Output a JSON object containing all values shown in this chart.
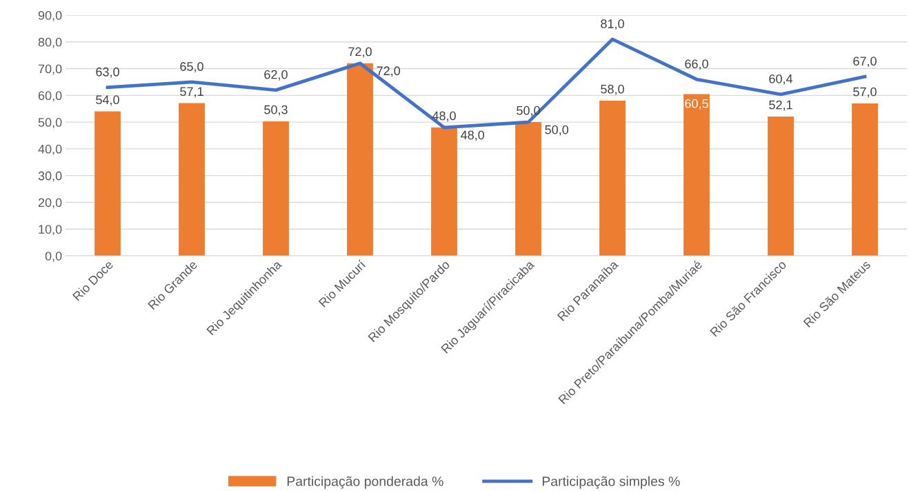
{
  "chart_data": {
    "type": "bar",
    "categories": [
      "Rio Doce",
      "Rio Grande",
      "Rio Jequitinhonha",
      "Rio Mucurí",
      "Rio Mosquito/Pardo",
      "Rio Jaguarí/Piracicaba",
      "Rio Paranaíba",
      "Rio Preto/Paraíbuna/Pomba/Muriaé",
      "Rio São Francisco",
      "Rio São Mateus"
    ],
    "series": [
      {
        "name": "Participação ponderada %",
        "type": "bar",
        "color": "#ed7d31",
        "values": [
          54.0,
          57.1,
          50.3,
          72.0,
          48.0,
          50.0,
          58.0,
          60.5,
          52.1,
          57.0
        ],
        "value_labels": [
          "54,0",
          "57,1",
          "50,3",
          "72,0",
          "48,0",
          "50,0",
          "58,0",
          "60,5",
          "52,1",
          "57,0"
        ]
      },
      {
        "name": "Participação simples %",
        "type": "line",
        "color": "#4472c4",
        "values": [
          63.0,
          65.0,
          62.0,
          72.0,
          48.0,
          50.0,
          81.0,
          66.0,
          60.4,
          67.0
        ],
        "value_labels": [
          "63,0",
          "65,0",
          "62,0",
          "72,0",
          "48,0",
          "50,0",
          "81,0",
          "66,0",
          "60,4",
          "67,0"
        ]
      }
    ],
    "ylim": [
      0,
      90
    ],
    "yticks": [
      {
        "value": 0,
        "label": "0,0"
      },
      {
        "value": 10,
        "label": "10,0"
      },
      {
        "value": 20,
        "label": "20,0"
      },
      {
        "value": 30,
        "label": "30,0"
      },
      {
        "value": 40,
        "label": "40,0"
      },
      {
        "value": 50,
        "label": "50,0"
      },
      {
        "value": 60,
        "label": "60,0"
      },
      {
        "value": 70,
        "label": "70,0"
      },
      {
        "value": 80,
        "label": "80,0"
      },
      {
        "value": 90,
        "label": "90,0"
      }
    ],
    "grid": "y",
    "legend": "bottom",
    "marker": "none",
    "line_style": "solid"
  }
}
